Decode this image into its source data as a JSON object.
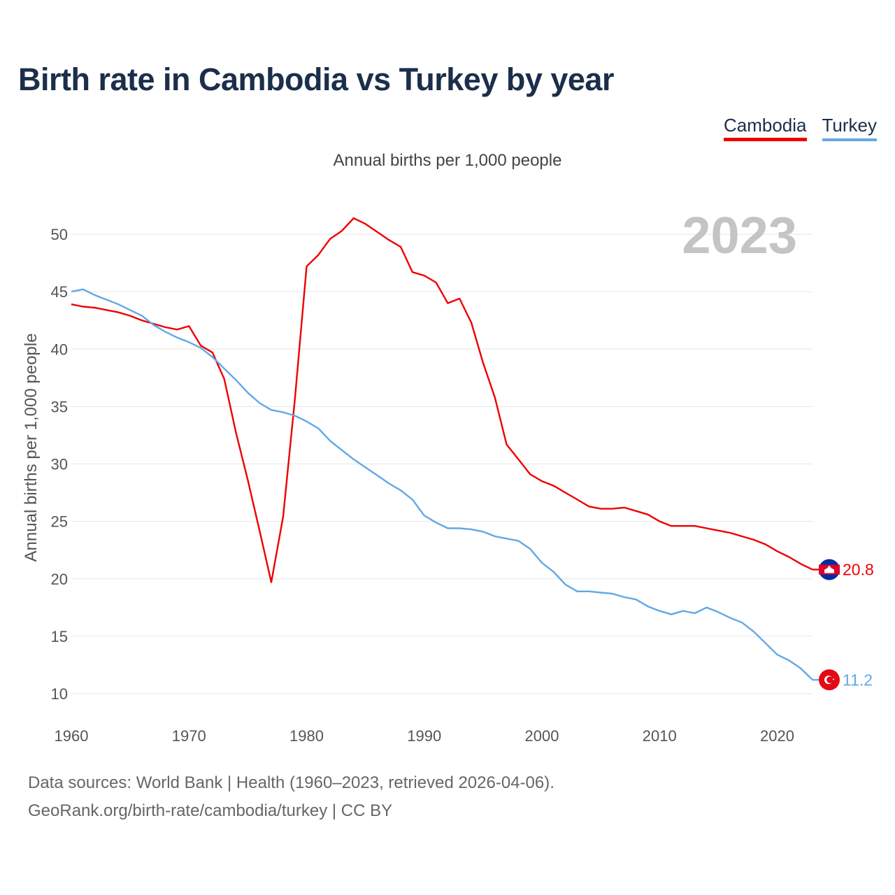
{
  "title": "Birth rate in Cambodia vs Turkey by year",
  "subtitle": "Annual births per 1,000 people",
  "legend": {
    "cambodia": "Cambodia",
    "turkey": "Turkey"
  },
  "footer": {
    "source": "Data sources: World Bank | Health (1960–2023, retrieved 2026-04-06).",
    "link": "GeoRank.org/birth-rate/cambodia/turkey | CC BY"
  },
  "chart_data": {
    "type": "line",
    "title": "Birth rate in Cambodia vs Turkey by year",
    "subtitle": "Annual births per 1,000 people",
    "xlabel": "",
    "ylabel": "Annual births per 1,000 people",
    "xlim": [
      1960,
      2023
    ],
    "ylim": [
      10,
      52
    ],
    "xticks": [
      1960,
      1970,
      1980,
      1990,
      2000,
      2010,
      2020
    ],
    "yticks": [
      10,
      15,
      20,
      25,
      30,
      35,
      40,
      45,
      50
    ],
    "grid": true,
    "year_label": "2023",
    "x": [
      1960,
      1961,
      1962,
      1963,
      1964,
      1965,
      1966,
      1967,
      1968,
      1969,
      1970,
      1971,
      1972,
      1973,
      1974,
      1975,
      1976,
      1977,
      1978,
      1979,
      1980,
      1981,
      1982,
      1983,
      1984,
      1985,
      1986,
      1987,
      1988,
      1989,
      1990,
      1991,
      1992,
      1993,
      1994,
      1995,
      1996,
      1997,
      1998,
      1999,
      2000,
      2001,
      2002,
      2003,
      2004,
      2005,
      2006,
      2007,
      2008,
      2009,
      2010,
      2011,
      2012,
      2013,
      2014,
      2015,
      2016,
      2017,
      2018,
      2019,
      2020,
      2021,
      2022,
      2023
    ],
    "series": [
      {
        "name": "Cambodia",
        "color": "#ee0000",
        "end_label": "20.8",
        "values": [
          43.9,
          43.7,
          43.6,
          43.4,
          43.2,
          42.9,
          42.5,
          42.2,
          41.9,
          41.7,
          42.0,
          40.3,
          39.7,
          37.4,
          32.7,
          28.6,
          24.2,
          19.7,
          25.4,
          35.6,
          47.2,
          48.2,
          49.6,
          50.3,
          51.4,
          50.9,
          50.2,
          49.5,
          48.9,
          46.7,
          46.4,
          45.8,
          44.0,
          44.4,
          42.3,
          38.8,
          35.8,
          31.7,
          30.4,
          29.1,
          28.5,
          28.1,
          27.5,
          26.9,
          26.3,
          26.1,
          26.1,
          26.2,
          25.9,
          25.6,
          25.0,
          24.6,
          24.6,
          24.6,
          24.4,
          24.2,
          24.0,
          23.7,
          23.4,
          23.0,
          22.4,
          21.9,
          21.3,
          20.8
        ]
      },
      {
        "name": "Turkey",
        "color": "#62a8e5",
        "end_label": "11.2",
        "values": [
          45.0,
          45.2,
          44.7,
          44.3,
          43.9,
          43.4,
          42.9,
          42.1,
          41.5,
          41.0,
          40.6,
          40.1,
          39.3,
          38.3,
          37.3,
          36.2,
          35.3,
          34.7,
          34.5,
          34.2,
          33.7,
          33.1,
          32.0,
          31.2,
          30.4,
          29.7,
          29.0,
          28.3,
          27.7,
          26.9,
          25.5,
          24.9,
          24.4,
          24.4,
          24.3,
          24.1,
          23.7,
          23.5,
          23.3,
          22.6,
          21.4,
          20.6,
          19.5,
          18.9,
          18.9,
          18.8,
          18.7,
          18.4,
          18.2,
          17.6,
          17.2,
          16.9,
          17.2,
          17.0,
          17.5,
          17.1,
          16.6,
          16.2,
          15.4,
          14.4,
          13.4,
          12.9,
          12.2,
          11.2
        ]
      }
    ]
  }
}
